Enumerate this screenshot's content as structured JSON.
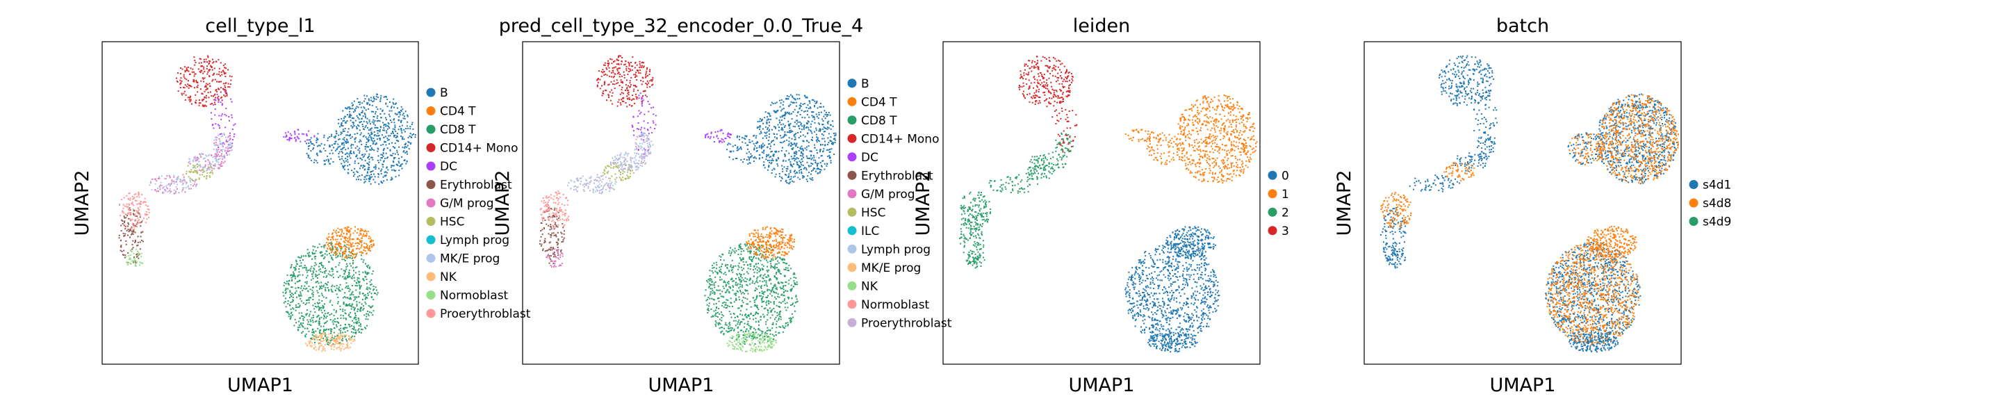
{
  "chart_data": [
    {
      "type": "scatter",
      "title": "cell_type_l1",
      "xlabel": "UMAP1",
      "ylabel": "UMAP2",
      "legend_position": "right",
      "legend": [
        {
          "label": "B",
          "color": "#1f77b4"
        },
        {
          "label": "CD4 T",
          "color": "#ff7f0e"
        },
        {
          "label": "CD8 T",
          "color": "#279e68"
        },
        {
          "label": "CD14+ Mono",
          "color": "#d62728"
        },
        {
          "label": "DC",
          "color": "#aa40fc"
        },
        {
          "label": "Erythroblast",
          "color": "#8c564b"
        },
        {
          "label": "G/M prog",
          "color": "#e377c2"
        },
        {
          "label": "HSC",
          "color": "#b5bd61"
        },
        {
          "label": "Lymph prog",
          "color": "#17becf"
        },
        {
          "label": "MK/E prog",
          "color": "#aec7e8"
        },
        {
          "label": "NK",
          "color": "#ffbb78"
        },
        {
          "label": "Normoblast",
          "color": "#98df8a"
        },
        {
          "label": "Proerythroblast",
          "color": "#ff9896"
        }
      ]
    },
    {
      "type": "scatter",
      "title": "pred_cell_type_32_encoder_0.0_True_4",
      "xlabel": "UMAP1",
      "ylabel": "UMAP2",
      "legend_position": "right",
      "legend": [
        {
          "label": "B",
          "color": "#1f77b4"
        },
        {
          "label": "CD4 T",
          "color": "#ff7f0e"
        },
        {
          "label": "CD8 T",
          "color": "#279e68"
        },
        {
          "label": "CD14+ Mono",
          "color": "#d62728"
        },
        {
          "label": "DC",
          "color": "#aa40fc"
        },
        {
          "label": "Erythroblast",
          "color": "#8c564b"
        },
        {
          "label": "G/M prog",
          "color": "#e377c2"
        },
        {
          "label": "HSC",
          "color": "#b5bd61"
        },
        {
          "label": "ILC",
          "color": "#17becf"
        },
        {
          "label": "Lymph prog",
          "color": "#aec7e8"
        },
        {
          "label": "MK/E prog",
          "color": "#ffbb78"
        },
        {
          "label": "NK",
          "color": "#98df8a"
        },
        {
          "label": "Normoblast",
          "color": "#ff9896"
        },
        {
          "label": "Proerythroblast",
          "color": "#c5b0d5"
        }
      ]
    },
    {
      "type": "scatter",
      "title": "leiden",
      "xlabel": "UMAP1",
      "ylabel": "UMAP2",
      "legend_position": "right",
      "legend": [
        {
          "label": "0",
          "color": "#1f77b4"
        },
        {
          "label": "1",
          "color": "#ff7f0e"
        },
        {
          "label": "2",
          "color": "#279e68"
        },
        {
          "label": "3",
          "color": "#d62728"
        }
      ]
    },
    {
      "type": "scatter",
      "title": "batch",
      "xlabel": "UMAP1",
      "ylabel": "UMAP2",
      "legend_position": "right",
      "legend": [
        {
          "label": "s4d1",
          "color": "#1f77b4"
        },
        {
          "label": "s4d8",
          "color": "#ff7f0e"
        },
        {
          "label": "s4d9",
          "color": "#279e68"
        }
      ]
    }
  ]
}
